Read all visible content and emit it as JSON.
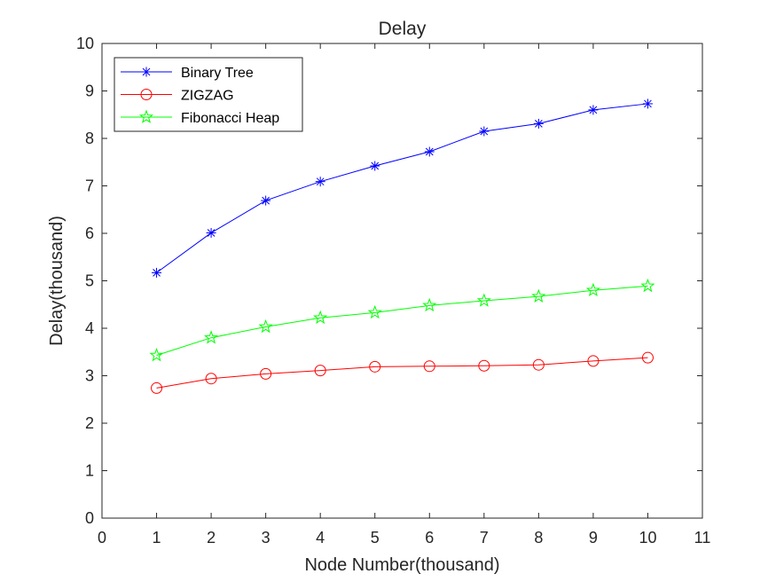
{
  "chart_data": {
    "type": "line",
    "title": "Delay",
    "xlabel": "Node Number(thousand)",
    "ylabel": "Delay(thousand)",
    "xlim": [
      0,
      11
    ],
    "ylim": [
      0,
      10
    ],
    "xticks": [
      0,
      1,
      2,
      3,
      4,
      5,
      6,
      7,
      8,
      9,
      10,
      11
    ],
    "yticks": [
      0,
      1,
      2,
      3,
      4,
      5,
      6,
      7,
      8,
      9,
      10
    ],
    "grid": false,
    "legend_position": "top-left",
    "x": [
      1,
      2,
      3,
      4,
      5,
      6,
      7,
      8,
      9,
      10
    ],
    "series": [
      {
        "name": "Binary Tree",
        "color": "#0000ff",
        "marker": "asterisk",
        "values": [
          5.17,
          6.01,
          6.69,
          7.09,
          7.42,
          7.72,
          8.15,
          8.31,
          8.6,
          8.73
        ]
      },
      {
        "name": "ZIGZAG",
        "color": "#ff0000",
        "marker": "circle",
        "values": [
          2.74,
          2.94,
          3.04,
          3.11,
          3.19,
          3.2,
          3.21,
          3.23,
          3.31,
          3.38
        ]
      },
      {
        "name": "Fibonacci Heap",
        "color": "#00ff00",
        "marker": "pentagram",
        "values": [
          3.43,
          3.8,
          4.03,
          4.22,
          4.33,
          4.48,
          4.58,
          4.67,
          4.8,
          4.89
        ]
      }
    ]
  }
}
